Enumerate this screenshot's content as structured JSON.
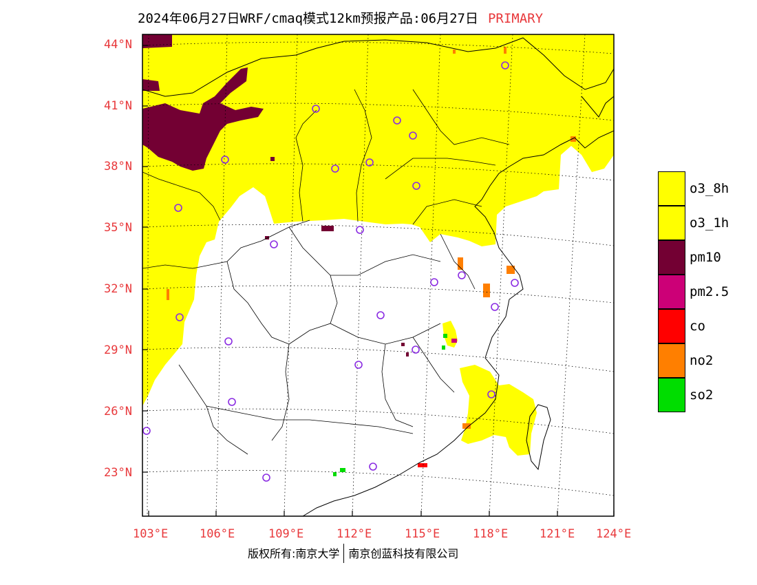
{
  "title": {
    "main": "2024年06月27日WRF/cmaq模式12km预报产品:06月27日",
    "tag": "PRIMARY"
  },
  "latitude_labels": [
    "44°N",
    "41°N",
    "38°N",
    "35°N",
    "32°N",
    "29°N",
    "26°N",
    "23°N"
  ],
  "longitude_labels": [
    "103°E",
    "106°E",
    "109°E",
    "112°E",
    "115°E",
    "118°E",
    "121°E",
    "124°E"
  ],
  "legend": [
    {
      "label": "o3_8h",
      "color": "#ffff00"
    },
    {
      "label": "o3_1h",
      "color": "#ffff00"
    },
    {
      "label": "pm10",
      "color": "#730033"
    },
    {
      "label": "pm2.5",
      "color": "#cc0077"
    },
    {
      "label": "co",
      "color": "#ff0000"
    },
    {
      "label": "no2",
      "color": "#ff7f00"
    },
    {
      "label": "so2",
      "color": "#00dd00"
    }
  ],
  "copyright": {
    "left": "版权所有:南京大学",
    "right": "南京创蓝科技有限公司"
  }
}
